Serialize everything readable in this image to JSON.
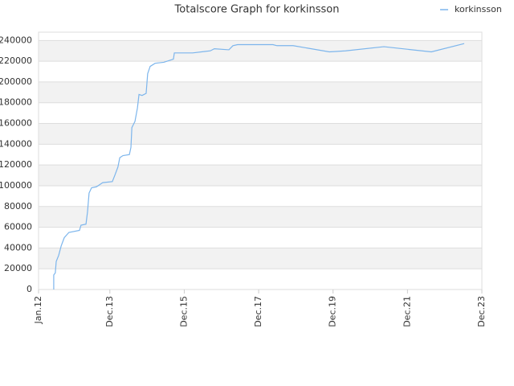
{
  "chart_data": {
    "type": "line",
    "title": "Totalscore Graph for korkinsson",
    "ylim": [
      0,
      248000
    ],
    "yticks": [
      0,
      20000,
      40000,
      60000,
      80000,
      100000,
      120000,
      140000,
      160000,
      180000,
      200000,
      220000,
      240000
    ],
    "xlim": [
      0,
      143
    ],
    "xticks": [
      {
        "value": 0,
        "label": "Jan.12"
      },
      {
        "value": 23,
        "label": "Dec.13"
      },
      {
        "value": 47,
        "label": "Dec.15"
      },
      {
        "value": 71,
        "label": "Dec.17"
      },
      {
        "value": 95,
        "label": "Dec.19"
      },
      {
        "value": 119,
        "label": "Dec.21"
      },
      {
        "value": 143,
        "label": "Dec.23"
      }
    ],
    "grid": true,
    "legend": "top-right",
    "x": [
      4.9,
      4.9,
      5.4,
      5.7,
      6.5,
      7.3,
      8.3,
      9.8,
      13.2,
      13.7,
      15.3,
      15.8,
      16.3,
      17.1,
      18.7,
      20.7,
      23.8,
      24.6,
      25.6,
      26.2,
      27.2,
      29.3,
      29.8,
      30.1,
      31.1,
      31.9,
      32.4,
      33.4,
      34.7,
      35.2,
      36.0,
      37.6,
      40.4,
      43.5,
      43.8,
      49.7,
      55.4,
      56.7,
      61.4,
      62.7,
      64.2,
      75.6,
      76.9,
      82.1,
      93.8,
      99.0,
      111.4,
      126.7,
      137.3
    ],
    "series": [
      {
        "name": "korkinsson",
        "color": "#7cb5ec",
        "values": [
          0,
          14000,
          16000,
          27000,
          33000,
          42000,
          50000,
          55000,
          57000,
          62000,
          63000,
          75000,
          93000,
          98000,
          99000,
          103000,
          104000,
          110000,
          118000,
          127000,
          129000,
          130000,
          137000,
          156000,
          162000,
          175000,
          188000,
          187000,
          189000,
          208000,
          215000,
          218000,
          219000,
          222000,
          228000,
          228000,
          230000,
          232000,
          231000,
          235000,
          236000,
          236000,
          235000,
          235000,
          229000,
          230000,
          234000,
          229000,
          237000
        ]
      }
    ]
  }
}
